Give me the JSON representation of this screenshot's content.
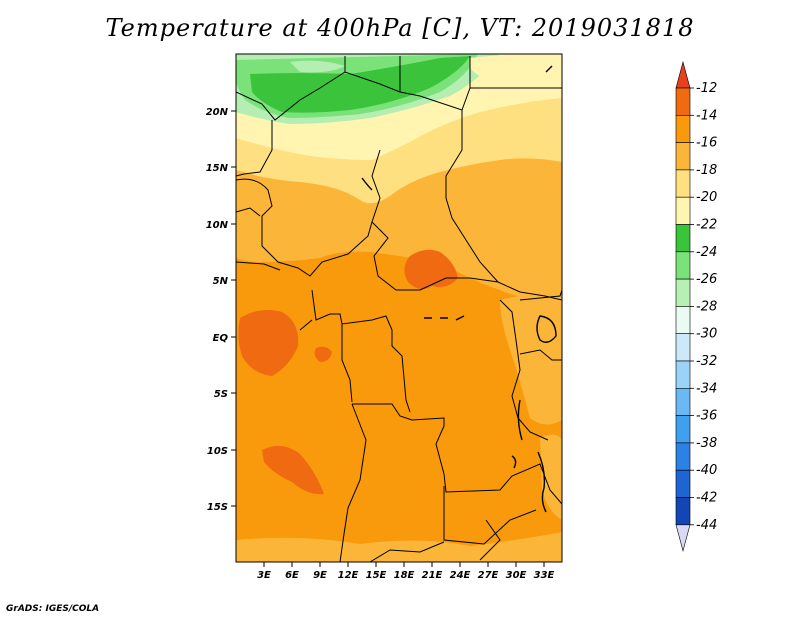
{
  "title": "Temperature at 400hPa [C], VT: 2019031818",
  "credit": "GrADS: IGES/COLA",
  "map": {
    "lat_labels": [
      "20N",
      "15N",
      "10N",
      "5N",
      "EQ",
      "5S",
      "10S",
      "15S"
    ],
    "lon_labels": [
      "3E",
      "6E",
      "9E",
      "12E",
      "15E",
      "18E",
      "21E",
      "24E",
      "27E",
      "30E",
      "33E"
    ]
  },
  "colorbar": {
    "labels": [
      "-12",
      "-14",
      "-16",
      "-18",
      "-20",
      "-22",
      "-24",
      "-26",
      "-28",
      "-30",
      "-32",
      "-34",
      "-36",
      "-38",
      "-40",
      "-42",
      "-44"
    ],
    "colors": [
      "#d9d9f5",
      "#0a0a7a",
      "#1246b5",
      "#1e64d2",
      "#2b82e4",
      "#3fa0ef",
      "#6ab9f4",
      "#9bd2f8",
      "#cbe9fb",
      "#eafbf3",
      "#b7f0b3",
      "#7be27a",
      "#39c43c",
      "#fff5b0",
      "#ffe080",
      "#fbb63a",
      "#f89a0c",
      "#f06a12",
      "#e8401c"
    ]
  },
  "palette": {
    "green_dark": "#3bc43b",
    "green_mid": "#7be27a",
    "green_light": "#b5eeb2",
    "yellow_pale": "#fff5b0",
    "yellow": "#ffe080",
    "orange_light": "#fbb63a",
    "orange": "#f89a0c",
    "orange_dark": "#f06a12"
  }
}
